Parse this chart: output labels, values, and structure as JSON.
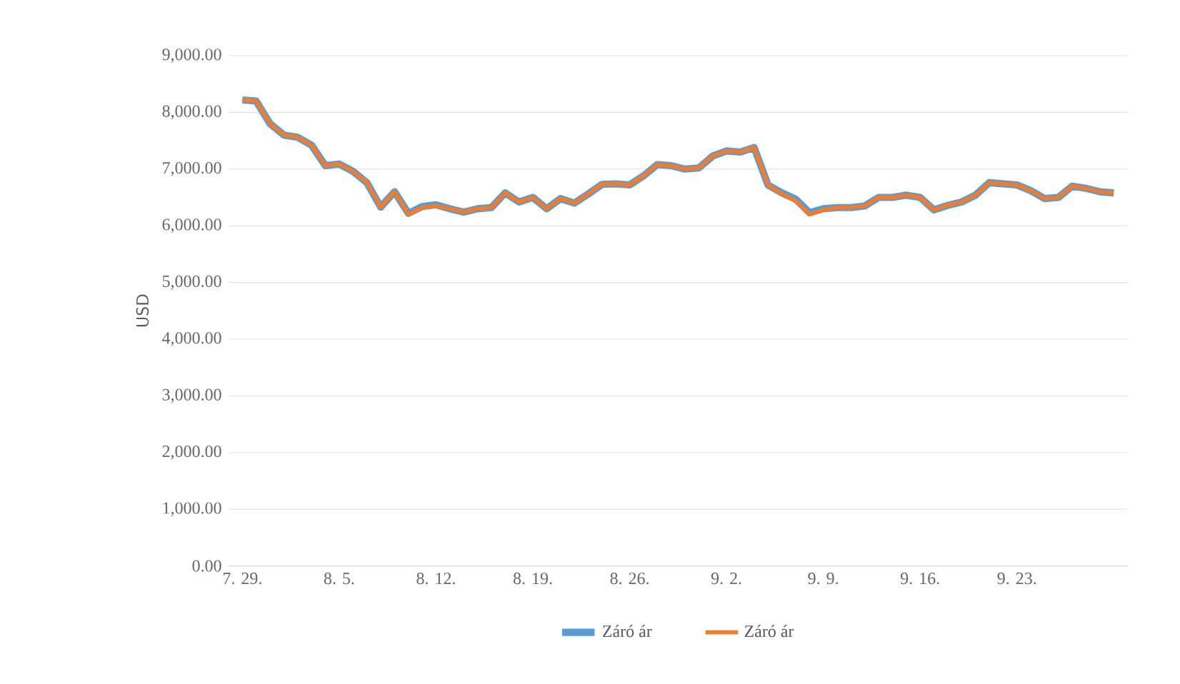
{
  "chart_data": {
    "type": "line",
    "ylabel": "USD",
    "categories": [
      "7. 29.",
      null,
      null,
      null,
      null,
      null,
      null,
      "8. 5.",
      null,
      null,
      null,
      null,
      null,
      null,
      "8. 12.",
      null,
      null,
      null,
      null,
      null,
      null,
      "8. 19.",
      null,
      null,
      null,
      null,
      null,
      null,
      "8. 26.",
      null,
      null,
      null,
      null,
      null,
      null,
      "9. 2.",
      null,
      null,
      null,
      null,
      null,
      null,
      "9. 9.",
      null,
      null,
      null,
      null,
      null,
      null,
      "9. 16.",
      null,
      null,
      null,
      null,
      null,
      null,
      "9. 23.",
      null,
      null,
      null,
      null,
      null,
      null,
      null
    ],
    "series": [
      {
        "name": "Záró ár",
        "color": "#5b9bd5",
        "values": [
          8220,
          8200,
          7800,
          7600,
          7560,
          7420,
          7060,
          7090,
          6960,
          6760,
          6330,
          6600,
          6220,
          6340,
          6370,
          6300,
          6240,
          6300,
          6320,
          6580,
          6420,
          6500,
          6300,
          6480,
          6400,
          6560,
          6730,
          6740,
          6720,
          6880,
          7080,
          7060,
          7000,
          7020,
          7230,
          7320,
          7300,
          7380,
          6720,
          6580,
          6470,
          6230,
          6300,
          6320,
          6320,
          6350,
          6500,
          6500,
          6540,
          6500,
          6280,
          6360,
          6420,
          6540,
          6760,
          6740,
          6720,
          6620,
          6480,
          6500,
          6700,
          6660,
          6600,
          6580
        ]
      },
      {
        "name": "Záró ár",
        "color": "#ed7d31",
        "values": [
          8220,
          8200,
          7800,
          7600,
          7560,
          7420,
          7060,
          7090,
          6960,
          6760,
          6330,
          6600,
          6200,
          6320,
          6350,
          6300,
          6240,
          6300,
          6320,
          6580,
          6420,
          6500,
          6300,
          6480,
          6400,
          6560,
          6730,
          6740,
          6720,
          6880,
          7080,
          7060,
          7000,
          7020,
          7230,
          7320,
          7300,
          7380,
          6720,
          6560,
          6440,
          6200,
          6280,
          6320,
          6320,
          6350,
          6500,
          6500,
          6540,
          6500,
          6280,
          6360,
          6420,
          6540,
          6760,
          6740,
          6720,
          6620,
          6480,
          6500,
          6700,
          6660,
          6600,
          6580
        ]
      }
    ],
    "ylim": [
      0,
      9000
    ],
    "yticks": [
      {
        "value": 0,
        "label": "0.00"
      },
      {
        "value": 1000,
        "label": "1,000.00"
      },
      {
        "value": 2000,
        "label": "2,000.00"
      },
      {
        "value": 3000,
        "label": "3,000.00"
      },
      {
        "value": 4000,
        "label": "4,000.00"
      },
      {
        "value": 5000,
        "label": "5,000.00"
      },
      {
        "value": 6000,
        "label": "6,000.00"
      },
      {
        "value": 7000,
        "label": "7,000.00"
      },
      {
        "value": 8000,
        "label": "8,000.00"
      },
      {
        "value": 9000,
        "label": "9,000.00"
      }
    ],
    "grid": "y",
    "legend": "bottom",
    "marker": "none",
    "line_style": "solid"
  }
}
